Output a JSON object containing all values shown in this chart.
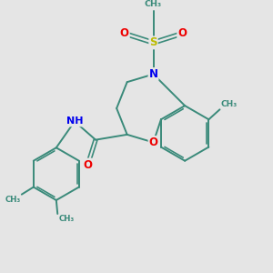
{
  "background_color": "#e5e5e5",
  "bond_color": "#3a8a7a",
  "bond_width": 1.4,
  "atom_colors": {
    "N": "#0000ee",
    "O": "#ee0000",
    "S": "#bbbb00",
    "C": "#3a8a7a"
  },
  "figsize": [
    3.0,
    3.0
  ],
  "dpi": 100,
  "xlim": [
    0,
    10
  ],
  "ylim": [
    0,
    10
  ]
}
